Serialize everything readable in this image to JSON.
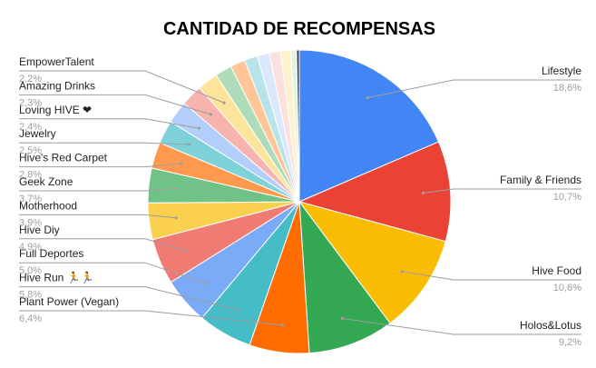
{
  "chart_data": {
    "type": "pie",
    "title": "CANTIDAD DE RECOMPENSAS",
    "start_angle_deg": 0,
    "labeled": [
      {
        "name": "Lifestyle",
        "value": 18.6,
        "label": "18,6%",
        "color": "#4285F4"
      },
      {
        "name": "Family & Friends",
        "value": 10.7,
        "label": "10,7%",
        "color": "#EA4335"
      },
      {
        "name": "Hive Food",
        "value": 10.6,
        "label": "10,6%",
        "color": "#FBBC04"
      },
      {
        "name": "Holos&Lotus",
        "value": 9.2,
        "label": "9,2%",
        "color": "#34A853"
      },
      {
        "name": "Plant Power (Vegan)",
        "value": 6.4,
        "label": "6,4%",
        "color": "#FF6D01"
      },
      {
        "name": "Hive Run 🏃🏃",
        "value": 5.8,
        "label": "5,8%",
        "color": "#46BDC6"
      },
      {
        "name": "Full Deportes",
        "value": 5.0,
        "label": "5,0%",
        "color": "#7BAAF7"
      },
      {
        "name": "Hive Diy",
        "value": 4.9,
        "label": "4,9%",
        "color": "#F07B72"
      },
      {
        "name": "Motherhood",
        "value": 3.9,
        "label": "3,9%",
        "color": "#FCD04F"
      },
      {
        "name": "Geek Zone",
        "value": 3.7,
        "label": "3,7%",
        "color": "#71C287"
      },
      {
        "name": "Hive's Red Carpet",
        "value": 2.8,
        "label": "2,8%",
        "color": "#FF994D"
      },
      {
        "name": "Jewelry",
        "value": 2.5,
        "label": "2,5%",
        "color": "#7ED1D7"
      },
      {
        "name": "Loving HIVE ❤",
        "value": 2.4,
        "label": "2,4%",
        "color": "#B3CEFB"
      },
      {
        "name": "Amazing Drinks",
        "value": 2.3,
        "label": "2,3%",
        "color": "#F7B4AE"
      },
      {
        "name": "EmpowerTalent",
        "value": 2.2,
        "label": "2,2%",
        "color": "#FDE49B"
      }
    ],
    "unlabeled_slices": [
      {
        "value": 1.8,
        "color": "#AEDCBA"
      },
      {
        "value": 1.6,
        "color": "#FFC599"
      },
      {
        "value": 1.4,
        "color": "#B6E4E8"
      },
      {
        "value": 1.3,
        "color": "#DBE7FD"
      },
      {
        "value": 1.2,
        "color": "#FBE0DD"
      },
      {
        "value": 1.1,
        "color": "#FEF2CD"
      },
      {
        "value": 0.6,
        "color": "#E0F2E4"
      },
      {
        "value": 0.3,
        "color": "#3C4043"
      }
    ]
  }
}
